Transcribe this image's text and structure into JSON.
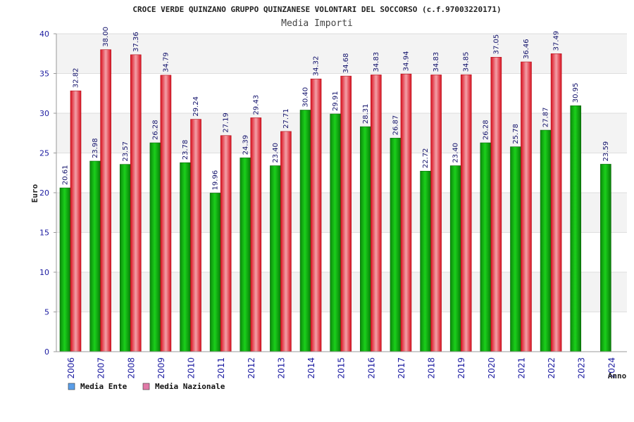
{
  "chart_data": {
    "type": "bar",
    "title": "CROCE VERDE QUINZANO GRUPPO QUINZANESE VOLONTARI DEL SOCCORSO (c.f.97003220171)",
    "subtitle": "Media Importi",
    "xlabel": "Anno",
    "ylabel": "Euro",
    "ylim": [
      0,
      40
    ],
    "yticks": [
      "0",
      "5",
      "10",
      "15",
      "20",
      "25",
      "30",
      "35",
      "40"
    ],
    "categories": [
      "2006",
      "2007",
      "2008",
      "2009",
      "2010",
      "2011",
      "2012",
      "2013",
      "2014",
      "2015",
      "2016",
      "2017",
      "2018",
      "2019",
      "2020",
      "2021",
      "2022",
      "2023",
      "2024"
    ],
    "series": [
      {
        "name": "Media Ente",
        "values": [
          20.61,
          23.98,
          23.57,
          26.28,
          23.78,
          19.96,
          24.39,
          23.4,
          30.4,
          29.91,
          28.31,
          26.87,
          22.72,
          23.4,
          26.28,
          25.78,
          27.87,
          30.95,
          23.59
        ],
        "labels": [
          "20.61",
          "23.98",
          "23.57",
          "26.28",
          "23.78",
          "19.96",
          "24.39",
          "23.40",
          "30.40",
          "29.91",
          "28.31",
          "26.87",
          "22.72",
          "23.40",
          "26.28",
          "25.78",
          "27.87",
          "30.95",
          "23.59"
        ],
        "bar_color": "#12b412",
        "legend_color": "#5a9ee8"
      },
      {
        "name": "Media Nazionale",
        "values": [
          32.82,
          38.0,
          37.36,
          34.79,
          29.24,
          27.19,
          29.43,
          27.71,
          34.32,
          34.68,
          34.83,
          34.94,
          34.83,
          34.85,
          37.05,
          36.46,
          37.49,
          null,
          null
        ],
        "labels": [
          "32.82",
          "38.00",
          "37.36",
          "34.79",
          "29.24",
          "27.19",
          "29.43",
          "27.71",
          "34.32",
          "34.68",
          "34.83",
          "34.94",
          "34.83",
          "34.85",
          "37.05",
          "36.46",
          "37.49",
          "",
          ""
        ],
        "bar_color": "#e62030",
        "legend_color": "#e27aa8"
      }
    ],
    "grid": true,
    "legend_position": "bottom-left"
  }
}
